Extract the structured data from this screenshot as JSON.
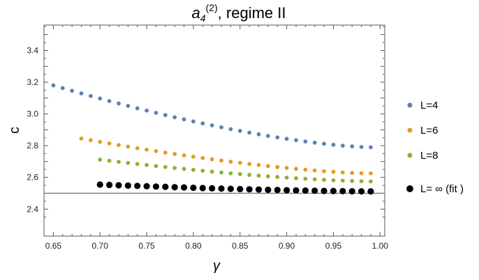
{
  "chart_data": {
    "type": "scatter",
    "title": {
      "symbol": "a",
      "subscript": "4",
      "superscript": "(2)",
      "rest": ", regime II"
    },
    "xlabel": "γ",
    "ylabel": "c",
    "xlim": [
      0.64,
      1.005
    ],
    "ylim": [
      2.23,
      3.56
    ],
    "x_ticks": [
      "0.65",
      "0.70",
      "0.75",
      "0.80",
      "0.85",
      "0.90",
      "0.95",
      "1.00"
    ],
    "y_ticks": [
      "2.4",
      "2.6",
      "2.8",
      "3.0",
      "3.2",
      "3.4"
    ],
    "reference_line": {
      "y": 2.5,
      "color": "#808080"
    },
    "legend_position": "right",
    "series": [
      {
        "name": "L=4",
        "color": "#5e81b5",
        "x_start": 0.65,
        "x_end": 0.99,
        "x_step": 0.01,
        "y_start": 3.18,
        "y_end": 2.79
      },
      {
        "name": "L=6",
        "color": "#e19c24",
        "x_start": 0.68,
        "x_end": 0.99,
        "x_step": 0.01,
        "y_start": 2.845,
        "y_end": 2.625
      },
      {
        "name": "L=8",
        "color": "#8fb032",
        "x_start": 0.7,
        "x_end": 0.99,
        "x_step": 0.01,
        "y_start": 2.712,
        "y_end": 2.575
      },
      {
        "name": "L= ∞ (fit )",
        "color": "#000000",
        "x_start": 0.7,
        "x_end": 0.99,
        "x_step": 0.01,
        "y_start": 2.555,
        "y_end": 2.512
      }
    ]
  }
}
